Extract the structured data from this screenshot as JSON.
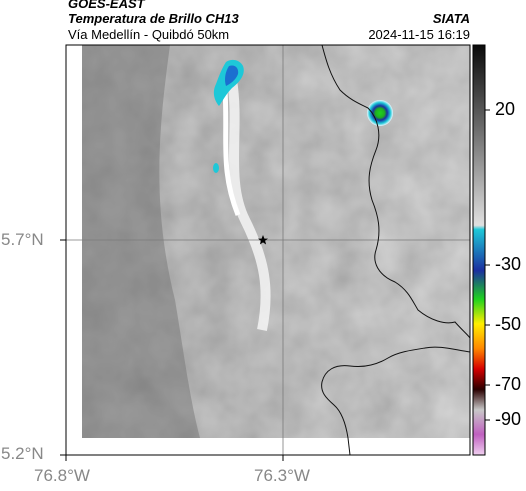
{
  "header": {
    "satellite": "GOES-EAST",
    "product": "Temperatura de Brillo CH13",
    "route": "Vía Medellín - Quibdó 50km",
    "agency": "SIATA",
    "timestamp": "2024-11-15 16:19"
  },
  "axes": {
    "lat_labels": [
      "5.7°N",
      "5.2°N"
    ],
    "lon_labels": [
      "76.8°W",
      "76.3°W"
    ]
  },
  "colorbar": {
    "labels": [
      "20",
      "-30",
      "-50",
      "-70",
      "-90"
    ],
    "colors": {
      "warm_top": "#0a0a0a",
      "mid_gray": "#b8b8b8",
      "cyan": "#1ec8d8",
      "blue": "#1b2fa0",
      "green": "#1fd21f",
      "yellow": "#ffee00",
      "orange": "#ff8800",
      "red": "#d60000",
      "dark": "#2a0000",
      "magenta": "#c060c0"
    }
  },
  "map": {
    "marker": "star-marker",
    "grid_lines": true
  }
}
